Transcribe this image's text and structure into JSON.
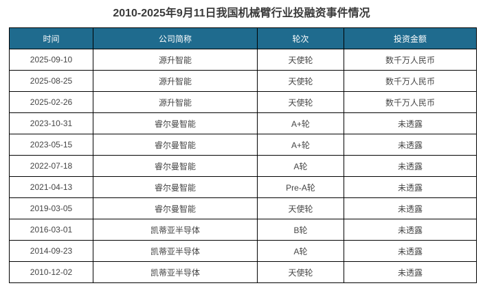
{
  "title": "2010-2025年9月11日我国机械臂行业投融资事件情况",
  "header_color": "#1f6b8e",
  "columns": [
    "时间",
    "公司简称",
    "轮次",
    "投资金额"
  ],
  "rows": [
    [
      "2025-09-10",
      "源升智能",
      "天使轮",
      "数千万人民币"
    ],
    [
      "2025-08-25",
      "源升智能",
      "天使轮",
      "数千万人民币"
    ],
    [
      "2025-02-26",
      "源升智能",
      "天使轮",
      "数千万人民币"
    ],
    [
      "2023-10-31",
      "睿尔曼智能",
      "A+轮",
      "未透露"
    ],
    [
      "2023-05-15",
      "睿尔曼智能",
      "A+轮",
      "未透露"
    ],
    [
      "2022-07-18",
      "睿尔曼智能",
      "A轮",
      "未透露"
    ],
    [
      "2021-04-13",
      "睿尔曼智能",
      "Pre-A轮",
      "未透露"
    ],
    [
      "2019-03-05",
      "睿尔曼智能",
      "天使轮",
      "未透露"
    ],
    [
      "2016-03-01",
      "凯蒂亚半导体",
      "B轮",
      "未透露"
    ],
    [
      "2014-09-23",
      "凯蒂亚半导体",
      "A轮",
      "未透露"
    ],
    [
      "2010-12-02",
      "凯蒂亚半导体",
      "天使轮",
      "未透露"
    ]
  ]
}
